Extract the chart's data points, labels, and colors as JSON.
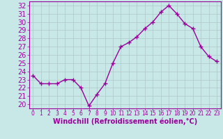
{
  "hours": [
    0,
    1,
    2,
    3,
    4,
    5,
    6,
    7,
    8,
    9,
    10,
    11,
    12,
    13,
    14,
    15,
    16,
    17,
    18,
    19,
    20,
    21,
    22,
    23
  ],
  "values": [
    23.5,
    22.5,
    22.5,
    22.5,
    23.0,
    23.0,
    22.0,
    19.8,
    21.2,
    22.5,
    25.0,
    27.0,
    27.5,
    28.2,
    29.2,
    30.0,
    31.2,
    32.0,
    31.0,
    29.8,
    29.2,
    27.0,
    25.8,
    25.2
  ],
  "line_color": "#990099",
  "marker": "+",
  "marker_size": 4,
  "marker_linewidth": 1.0,
  "line_width": 1.0,
  "bg_color": "#c8e8e8",
  "grid_color": "#b0c8c8",
  "xlabel": "Windchill (Refroidissement éolien,°C)",
  "xlabel_color": "#990099",
  "tick_color": "#990099",
  "spine_color": "#990099",
  "ylim": [
    19.5,
    32.5
  ],
  "yticks": [
    20,
    21,
    22,
    23,
    24,
    25,
    26,
    27,
    28,
    29,
    30,
    31,
    32
  ],
  "xlim": [
    -0.5,
    23.5
  ],
  "ytick_fontsize": 7,
  "xtick_fontsize": 5.5,
  "xlabel_fontsize": 7
}
